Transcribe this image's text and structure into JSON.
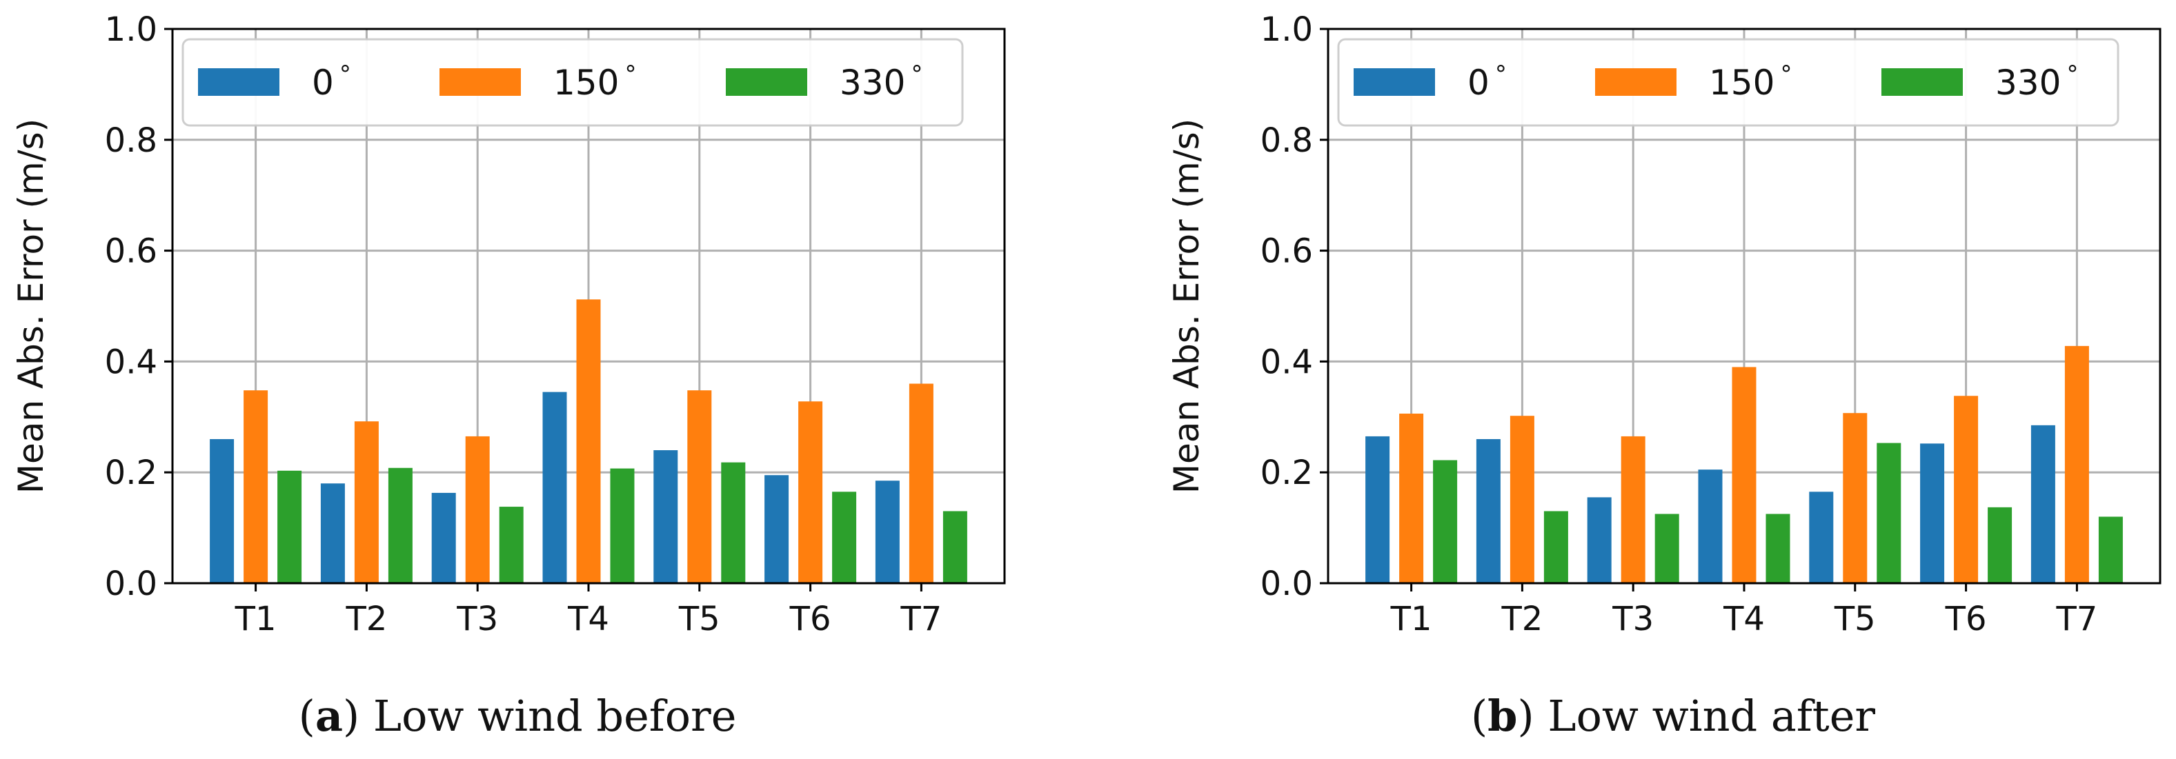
{
  "colors": {
    "deg0": "#1f77b4",
    "deg150": "#ff7f0e",
    "deg330": "#2ca02c"
  },
  "chart_data": [
    {
      "type": "bar",
      "panel_label": "a",
      "caption": "Low wind before",
      "ylabel": "Mean Abs. Error (m/s)",
      "xlabel": "",
      "ylim": [
        0.0,
        1.0
      ],
      "yticks": [
        "0.0",
        "0.2",
        "0.4",
        "0.6",
        "0.8",
        "1.0"
      ],
      "grid": true,
      "legend_position": "top-left",
      "legend_columns": 3,
      "categories": [
        "T1",
        "T2",
        "T3",
        "T4",
        "T5",
        "T6",
        "T7"
      ],
      "series": [
        {
          "name": "0°",
          "legend_value": "0",
          "color_key": "deg0",
          "values": [
            0.26,
            0.18,
            0.163,
            0.345,
            0.24,
            0.195,
            0.185
          ]
        },
        {
          "name": "150°",
          "legend_value": "150",
          "color_key": "deg150",
          "values": [
            0.348,
            0.292,
            0.265,
            0.512,
            0.348,
            0.328,
            0.36
          ]
        },
        {
          "name": "330°",
          "legend_value": "330",
          "color_key": "deg330",
          "values": [
            0.203,
            0.208,
            0.138,
            0.207,
            0.218,
            0.165,
            0.13
          ]
        }
      ]
    },
    {
      "type": "bar",
      "panel_label": "b",
      "caption": "Low wind after",
      "ylabel": "Mean Abs. Error (m/s)",
      "xlabel": "",
      "ylim": [
        0.0,
        1.0
      ],
      "yticks": [
        "0.0",
        "0.2",
        "0.4",
        "0.6",
        "0.8",
        "1.0"
      ],
      "grid": true,
      "legend_position": "top-left",
      "legend_columns": 3,
      "categories": [
        "T1",
        "T2",
        "T3",
        "T4",
        "T5",
        "T6",
        "T7"
      ],
      "series": [
        {
          "name": "0°",
          "legend_value": "0",
          "color_key": "deg0",
          "values": [
            0.265,
            0.26,
            0.155,
            0.205,
            0.165,
            0.252,
            0.285
          ]
        },
        {
          "name": "150°",
          "legend_value": "150",
          "color_key": "deg150",
          "values": [
            0.306,
            0.302,
            0.265,
            0.39,
            0.307,
            0.338,
            0.428
          ]
        },
        {
          "name": "330°",
          "legend_value": "330",
          "color_key": "deg330",
          "values": [
            0.222,
            0.13,
            0.125,
            0.125,
            0.253,
            0.137,
            0.12
          ]
        }
      ]
    }
  ]
}
